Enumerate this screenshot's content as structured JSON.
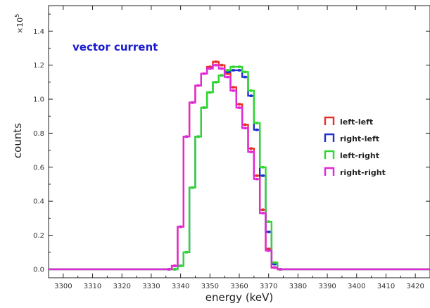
{
  "chart_data": {
    "type": "line",
    "step": true,
    "title": "",
    "xlabel": "energy  (keV)",
    "ylabel": "counts",
    "y_exponent_label": "×10",
    "y_exponent_power": "5",
    "annotation": "vector current",
    "xlim": [
      3295,
      3425
    ],
    "ylim": [
      -0.05,
      1.55
    ],
    "x_ticks": [
      3300,
      3310,
      3320,
      3330,
      3340,
      3350,
      3360,
      3370,
      3380,
      3390,
      3400,
      3410,
      3420
    ],
    "y_ticks": [
      0.0,
      0.2,
      0.4,
      0.6,
      0.8,
      1.0,
      1.2,
      1.4
    ],
    "x_tick_labels": [
      "3300",
      "3310",
      "3320",
      "3330",
      "3340",
      "3350",
      "3360",
      "3370",
      "3380",
      "3390",
      "3400",
      "3410",
      "3420"
    ],
    "y_tick_labels": [
      "0.0",
      "0.2",
      "0.4",
      "0.6",
      "0.8",
      "1.0",
      "1.2",
      "1.4"
    ],
    "grid": false,
    "legend_position": "right",
    "x": [
      3336,
      3338,
      3340,
      3342,
      3344,
      3346,
      3348,
      3350,
      3352,
      3354,
      3356,
      3358,
      3360,
      3362,
      3364,
      3366,
      3368,
      3370,
      3372,
      3374
    ],
    "series": [
      {
        "name": "left-left",
        "color": "#e8302a",
        "values": [
          0.0,
          0.02,
          0.25,
          0.78,
          0.98,
          1.08,
          1.15,
          1.19,
          1.22,
          1.2,
          1.15,
          1.07,
          0.97,
          0.85,
          0.71,
          0.55,
          0.35,
          0.12,
          0.01,
          0.0
        ]
      },
      {
        "name": "right-left",
        "color": "#1f2fd0",
        "values": [
          0.0,
          0.0,
          0.02,
          0.1,
          0.48,
          0.78,
          0.95,
          1.04,
          1.1,
          1.14,
          1.16,
          1.17,
          1.17,
          1.13,
          1.02,
          0.82,
          0.55,
          0.22,
          0.03,
          0.0
        ]
      },
      {
        "name": "left-right",
        "color": "#2ed82e",
        "values": [
          0.0,
          0.0,
          0.02,
          0.1,
          0.48,
          0.78,
          0.95,
          1.04,
          1.1,
          1.14,
          1.17,
          1.19,
          1.19,
          1.16,
          1.05,
          0.86,
          0.6,
          0.28,
          0.04,
          0.0
        ]
      },
      {
        "name": "right-right",
        "color": "#e028d8",
        "values": [
          0.0,
          0.02,
          0.25,
          0.78,
          0.98,
          1.08,
          1.15,
          1.18,
          1.2,
          1.18,
          1.13,
          1.05,
          0.95,
          0.83,
          0.69,
          0.53,
          0.33,
          0.11,
          0.01,
          0.0
        ]
      }
    ]
  }
}
